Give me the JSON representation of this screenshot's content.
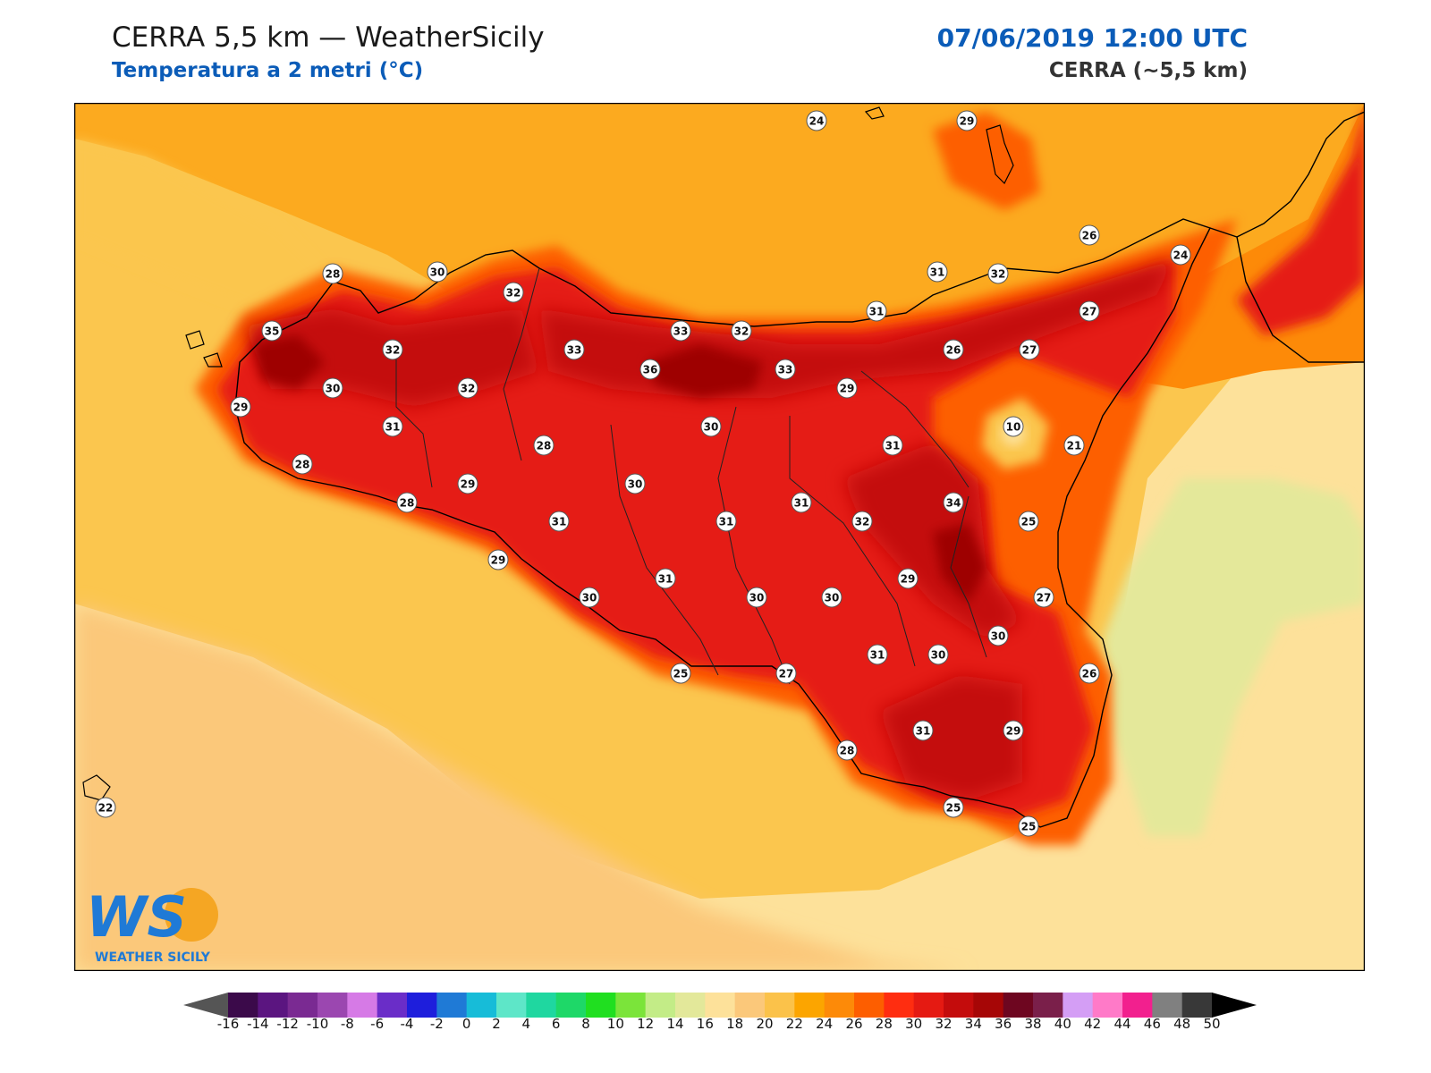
{
  "header": {
    "title": "CERRA 5,5 km — WeatherSicily",
    "subtitle": "Temperatura a 2 metri (°C)",
    "datetime": "07/06/2019 12:00 UTC",
    "source": "CERRA (~5,5 km)"
  },
  "logo": {
    "letters": "WS",
    "text": "WEATHER SICILY"
  },
  "colors": {
    "title_blue": "#0b5cb8",
    "sea_light": "#fde19a",
    "sea": "#fbc64e",
    "sea_warm": "#fcaa1f",
    "land_hot": "#e51a12",
    "land_hotter": "#c40c0c",
    "land_peak": "#9e0606"
  },
  "colorbar": {
    "ticks": [
      "-16",
      "-14",
      "-12",
      "-10",
      "-8",
      "-6",
      "-4",
      "-2",
      "0",
      "2",
      "4",
      "6",
      "8",
      "10",
      "12",
      "14",
      "16",
      "18",
      "20",
      "22",
      "24",
      "26",
      "28",
      "30",
      "32",
      "34",
      "36",
      "38",
      "40",
      "42",
      "44",
      "46",
      "48",
      "50"
    ],
    "colors": [
      "#3b0a4a",
      "#5b1580",
      "#7a2a92",
      "#9b47b0",
      "#d67ae6",
      "#6a2dc8",
      "#1e1edc",
      "#1f7ad6",
      "#17bcd8",
      "#5ee6c8",
      "#1fd7a0",
      "#1ed868",
      "#20df20",
      "#7be43a",
      "#c3ec87",
      "#e3e89a",
      "#fde19a",
      "#fbc87a",
      "#fbc24a",
      "#fca500",
      "#fd8a08",
      "#fd5e00",
      "#ff2d10",
      "#e51a12",
      "#c40c0c",
      "#a60606",
      "#6e0620",
      "#7a1f4a",
      "#d49ef5",
      "#ff7ac8",
      "#f2208e",
      "#808080",
      "#383838"
    ]
  },
  "map": {
    "region": "Sicily",
    "station_labels": [
      {
        "name": "s1",
        "value": "24"
      },
      {
        "name": "s2",
        "value": "29"
      },
      {
        "name": "s3",
        "value": "26"
      },
      {
        "name": "s4",
        "value": "24"
      },
      {
        "name": "s5",
        "value": "28"
      },
      {
        "name": "s6",
        "value": "30"
      },
      {
        "name": "s7",
        "value": "32"
      },
      {
        "name": "s8",
        "value": "31"
      },
      {
        "name": "s9",
        "value": "32"
      },
      {
        "name": "s10",
        "value": "35"
      },
      {
        "name": "s11",
        "value": "32"
      },
      {
        "name": "s12",
        "value": "33"
      },
      {
        "name": "s13",
        "value": "33"
      },
      {
        "name": "s14",
        "value": "32"
      },
      {
        "name": "s15",
        "value": "31"
      },
      {
        "name": "s16",
        "value": "27"
      },
      {
        "name": "s17",
        "value": "36"
      },
      {
        "name": "s18",
        "value": "33"
      },
      {
        "name": "s19",
        "value": "26"
      },
      {
        "name": "s20",
        "value": "27"
      },
      {
        "name": "s21",
        "value": "30"
      },
      {
        "name": "s22",
        "value": "32"
      },
      {
        "name": "s23",
        "value": "29"
      },
      {
        "name": "s24",
        "value": "29"
      },
      {
        "name": "s25",
        "value": "31"
      },
      {
        "name": "s26",
        "value": "30"
      },
      {
        "name": "s27",
        "value": "10"
      },
      {
        "name": "s28",
        "value": "28"
      },
      {
        "name": "s29",
        "value": "31"
      },
      {
        "name": "s30",
        "value": "21"
      },
      {
        "name": "s31",
        "value": "28"
      },
      {
        "name": "s32",
        "value": "29"
      },
      {
        "name": "s33",
        "value": "30"
      },
      {
        "name": "s34",
        "value": "28"
      },
      {
        "name": "s35",
        "value": "31"
      },
      {
        "name": "s36",
        "value": "31"
      },
      {
        "name": "s37",
        "value": "31"
      },
      {
        "name": "s38",
        "value": "32"
      },
      {
        "name": "s39",
        "value": "34"
      },
      {
        "name": "s40",
        "value": "25"
      },
      {
        "name": "s41",
        "value": "29"
      },
      {
        "name": "s42",
        "value": "30"
      },
      {
        "name": "s43",
        "value": "31"
      },
      {
        "name": "s44",
        "value": "29"
      },
      {
        "name": "s45",
        "value": "30"
      },
      {
        "name": "s46",
        "value": "30"
      },
      {
        "name": "s47",
        "value": "27"
      },
      {
        "name": "s48",
        "value": "30"
      },
      {
        "name": "s49",
        "value": "25"
      },
      {
        "name": "s50",
        "value": "27"
      },
      {
        "name": "s51",
        "value": "31"
      },
      {
        "name": "s52",
        "value": "30"
      },
      {
        "name": "s53",
        "value": "26"
      },
      {
        "name": "s54",
        "value": "31"
      },
      {
        "name": "s55",
        "value": "29"
      },
      {
        "name": "s56",
        "value": "28"
      },
      {
        "name": "s57",
        "value": "22"
      },
      {
        "name": "s58",
        "value": "25"
      },
      {
        "name": "s59",
        "value": "25"
      }
    ]
  }
}
